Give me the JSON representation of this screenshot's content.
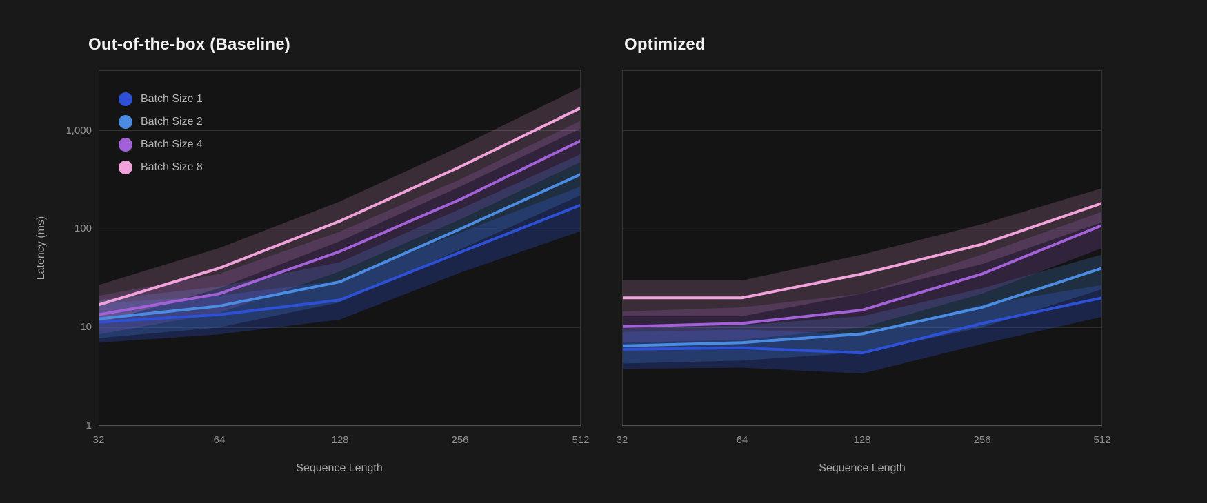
{
  "colors": {
    "background": "#191919",
    "plot_background": "#141414",
    "plot_border": "#353535",
    "axis_line": "#545454",
    "grid_line": "#343434",
    "title_text": "#f2f2f2",
    "tick_text": "#8f8f8f",
    "axis_label_text": "#a8a8a8",
    "legend_text": "#b5b5b5"
  },
  "axes": {
    "y_label": "Latency (ms)",
    "x_label": "Sequence Length",
    "y_tick_labels": [
      "1,000",
      "100",
      "10",
      "1"
    ],
    "y_tick_values": [
      1000,
      100,
      10,
      1
    ],
    "x_tick_labels": [
      "32",
      "64",
      "128",
      "256",
      "512"
    ]
  },
  "legend": {
    "items": [
      {
        "label": "Batch Size 1",
        "color": "#2d50d4"
      },
      {
        "label": "Batch Size 2",
        "color": "#4b8ce2"
      },
      {
        "label": "Batch Size 4",
        "color": "#a261d6"
      },
      {
        "label": "Batch Size 8",
        "color": "#f0a2da"
      }
    ]
  },
  "chart_data": [
    {
      "type": "line",
      "title": "Out-of-the-box (Baseline)",
      "xlabel": "Sequence Length",
      "ylabel": "Latency (ms)",
      "x": [
        32,
        64,
        128,
        256,
        512
      ],
      "x_scale": "log2",
      "y_scale": "log10",
      "ylim": [
        1,
        4100
      ],
      "grid_values": [
        10,
        100,
        1000
      ],
      "grid": "horizontal-only",
      "legend_position": "top-left-inside",
      "series": [
        {
          "name": "Batch Size 1",
          "color": "#2d50d4",
          "band_opacity": 0.28,
          "values": [
            11.3,
            13.5,
            19,
            58,
            175
          ],
          "band_low": [
            7,
            8.5,
            12,
            36,
            95
          ],
          "band_high": [
            17.5,
            21,
            30,
            92,
            270
          ]
        },
        {
          "name": "Batch Size 2",
          "color": "#4b8ce2",
          "band_opacity": 0.22,
          "values": [
            12.2,
            16.5,
            29,
            100,
            360
          ],
          "band_low": [
            7.8,
            10,
            18,
            62,
            220
          ],
          "band_high": [
            19,
            26,
            46,
            160,
            575
          ]
        },
        {
          "name": "Batch Size 4",
          "color": "#a261d6",
          "band_opacity": 0.2,
          "values": [
            13.5,
            22,
            59,
            200,
            790
          ],
          "band_low": [
            8.5,
            14,
            37,
            125,
            480
          ],
          "band_high": [
            21,
            35,
            94,
            320,
            1260
          ]
        },
        {
          "name": "Batch Size 8",
          "color": "#f0a2da",
          "band_opacity": 0.18,
          "values": [
            17,
            40,
            120,
            430,
            1700
          ],
          "band_low": [
            11,
            25,
            75,
            270,
            1050
          ],
          "band_high": [
            27,
            64,
            190,
            690,
            2750
          ]
        }
      ]
    },
    {
      "type": "line",
      "title": "Optimized",
      "xlabel": "Sequence Length",
      "ylabel": "Latency (ms)",
      "x": [
        32,
        64,
        128,
        256,
        512
      ],
      "x_scale": "log2",
      "y_scale": "log10",
      "ylim": [
        1,
        4100
      ],
      "grid_values": [
        10,
        100,
        1000
      ],
      "grid": "horizontal-only",
      "legend_position": "none",
      "series": [
        {
          "name": "Batch Size 1",
          "color": "#2d50d4",
          "band_opacity": 0.28,
          "values": [
            6,
            6.2,
            5.5,
            11,
            20
          ],
          "band_low": [
            3.8,
            3.9,
            3.4,
            6.8,
            12.8
          ],
          "band_high": [
            9,
            9.5,
            8.5,
            17,
            27
          ]
        },
        {
          "name": "Batch Size 2",
          "color": "#4b8ce2",
          "band_opacity": 0.22,
          "values": [
            6.5,
            7,
            8.6,
            16,
            40
          ],
          "band_low": [
            4.3,
            4.6,
            5.6,
            10,
            24.5
          ],
          "band_high": [
            9.8,
            10.5,
            13,
            25,
            55
          ]
        },
        {
          "name": "Batch Size 4",
          "color": "#a261d6",
          "band_opacity": 0.2,
          "values": [
            10.2,
            11,
            15,
            35,
            109
          ],
          "band_low": [
            7,
            7.5,
            10,
            22,
            64
          ],
          "band_high": [
            14.5,
            16,
            22,
            55,
            150
          ]
        },
        {
          "name": "Batch Size 8",
          "color": "#f0a2da",
          "band_opacity": 0.18,
          "values": [
            20,
            20,
            35,
            70,
            183
          ],
          "band_low": [
            13,
            13,
            22,
            44,
            117
          ],
          "band_high": [
            30,
            30,
            55,
            112,
            260
          ]
        }
      ]
    }
  ]
}
